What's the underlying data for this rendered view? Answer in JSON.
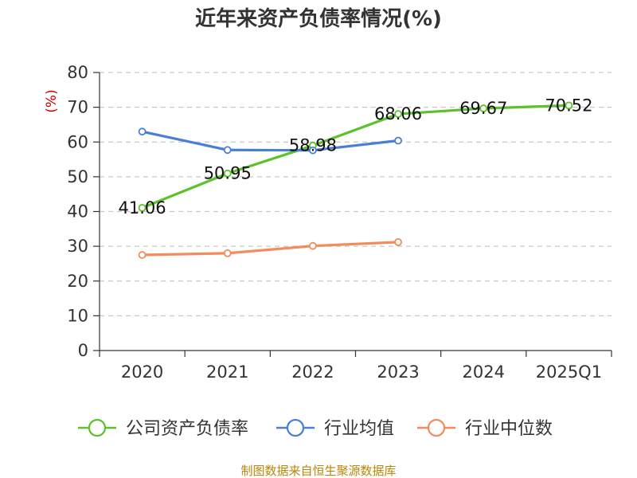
{
  "chart_data": {
    "type": "line",
    "title": "近年来资产负债率情况(%)",
    "ylabel": "(%)",
    "xlabel": "",
    "categories": [
      "2020",
      "2021",
      "2022",
      "2023",
      "2024",
      "2025Q1"
    ],
    "ylim": [
      0,
      80
    ],
    "yticks": [
      0,
      10,
      20,
      30,
      40,
      50,
      60,
      70,
      80
    ],
    "grid": true,
    "legend_position": "bottom",
    "series": [
      {
        "name": "公司资产负债率",
        "color": "#5cc12b",
        "values": [
          41.06,
          50.95,
          58.98,
          68.06,
          69.67,
          70.52
        ],
        "data_labels": [
          "41.06",
          "50.95",
          "58.98",
          "68.06",
          "69.67",
          "70.52"
        ]
      },
      {
        "name": "行业均值",
        "color": "#4a7fd8",
        "values": [
          63.0,
          57.7,
          57.6,
          60.4,
          null,
          null
        ],
        "data_labels": []
      },
      {
        "name": "行业中位数",
        "color": "#f28c5c",
        "values": [
          27.5,
          28.0,
          30.1,
          31.2,
          null,
          null
        ],
        "data_labels": []
      }
    ]
  },
  "source": "制图数据来自恒生聚源数据库"
}
